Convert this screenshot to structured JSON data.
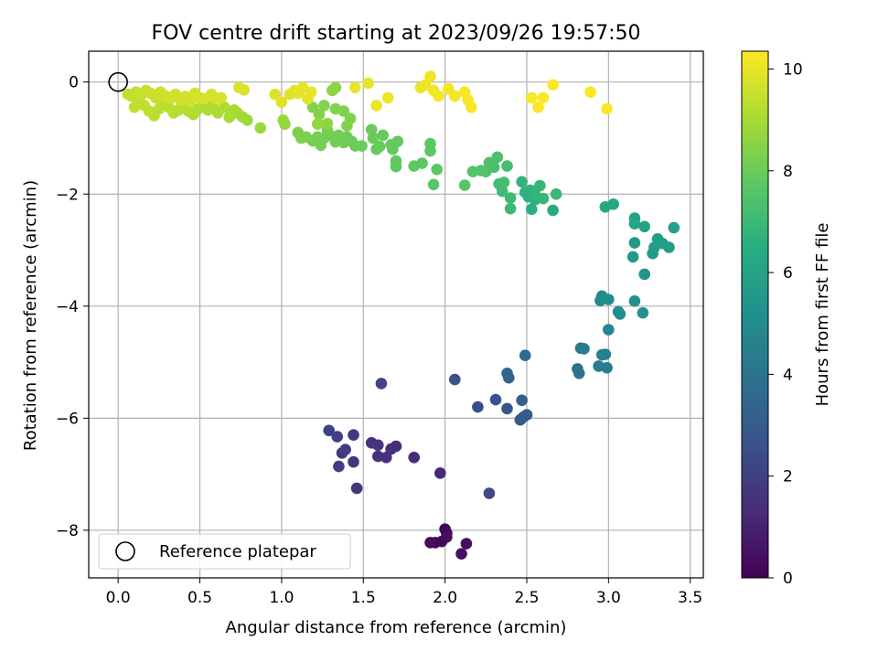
{
  "chart_data": {
    "type": "scatter",
    "title": "FOV centre drift starting at 2023/09/26 19:57:50",
    "xlabel": "Angular distance from reference (arcmin)",
    "ylabel": "Rotation from reference (arcmin)",
    "xlim": [
      -0.18,
      3.58
    ],
    "ylim": [
      -8.85,
      0.55
    ],
    "xticks": [
      0.0,
      0.5,
      1.0,
      1.5,
      2.0,
      2.5,
      3.0,
      3.5
    ],
    "yticks": [
      0,
      -2,
      -4,
      -6,
      -8
    ],
    "xtick_labels": [
      "0.0",
      "0.5",
      "1.0",
      "1.5",
      "2.0",
      "2.5",
      "3.0",
      "3.5"
    ],
    "ytick_labels": [
      "0",
      "−2",
      "−4",
      "−6",
      "−8"
    ],
    "grid": true,
    "legend": {
      "placement": "lower-left",
      "entries": [
        "Reference platepar"
      ]
    },
    "reference_point": {
      "x": 0.0,
      "y": 0.0,
      "marker": "open-circle",
      "color": "#000000"
    },
    "colorbar": {
      "label": "Hours from first FF file",
      "range": [
        0,
        10.35
      ],
      "ticks": [
        0,
        2,
        4,
        6,
        8,
        10
      ],
      "tick_labels": [
        "0",
        "2",
        "4",
        "6",
        "8",
        "10"
      ],
      "colormap": "viridis"
    },
    "points": [
      {
        "x": 2.01,
        "y": -8.05,
        "c": 0.1
      },
      {
        "x": 2.0,
        "y": -7.98,
        "c": 0.15
      },
      {
        "x": 1.94,
        "y": -8.22,
        "c": 0.2
      },
      {
        "x": 1.98,
        "y": -8.2,
        "c": 0.25
      },
      {
        "x": 1.91,
        "y": -8.22,
        "c": 0.3
      },
      {
        "x": 2.01,
        "y": -8.12,
        "c": 0.35
      },
      {
        "x": 2.13,
        "y": -8.24,
        "c": 0.4
      },
      {
        "x": 2.1,
        "y": -8.42,
        "c": 0.45
      },
      {
        "x": 1.97,
        "y": -6.98,
        "c": 1.2
      },
      {
        "x": 1.81,
        "y": -6.7,
        "c": 1.3
      },
      {
        "x": 1.7,
        "y": -6.5,
        "c": 1.35
      },
      {
        "x": 1.67,
        "y": -6.55,
        "c": 1.4
      },
      {
        "x": 1.64,
        "y": -6.7,
        "c": 1.45
      },
      {
        "x": 1.59,
        "y": -6.68,
        "c": 1.5
      },
      {
        "x": 1.55,
        "y": -6.44,
        "c": 1.55
      },
      {
        "x": 1.59,
        "y": -6.48,
        "c": 1.6
      },
      {
        "x": 1.46,
        "y": -7.25,
        "c": 1.65
      },
      {
        "x": 1.44,
        "y": -6.78,
        "c": 1.7
      },
      {
        "x": 1.44,
        "y": -6.3,
        "c": 1.75
      },
      {
        "x": 1.37,
        "y": -6.62,
        "c": 1.8
      },
      {
        "x": 1.39,
        "y": -6.56,
        "c": 1.85
      },
      {
        "x": 1.35,
        "y": -6.86,
        "c": 1.9
      },
      {
        "x": 1.34,
        "y": -6.33,
        "c": 1.95
      },
      {
        "x": 1.29,
        "y": -6.22,
        "c": 2.0
      },
      {
        "x": 1.61,
        "y": -5.38,
        "c": 2.1
      },
      {
        "x": 2.27,
        "y": -7.34,
        "c": 2.3
      },
      {
        "x": 2.2,
        "y": -5.8,
        "c": 2.5
      },
      {
        "x": 2.06,
        "y": -5.31,
        "c": 2.6
      },
      {
        "x": 2.31,
        "y": -5.67,
        "c": 2.7
      },
      {
        "x": 2.38,
        "y": -5.83,
        "c": 2.8
      },
      {
        "x": 2.46,
        "y": -6.03,
        "c": 2.9
      },
      {
        "x": 2.48,
        "y": -5.98,
        "c": 2.95
      },
      {
        "x": 2.5,
        "y": -5.94,
        "c": 3.0
      },
      {
        "x": 2.47,
        "y": -5.68,
        "c": 3.1
      },
      {
        "x": 2.38,
        "y": -5.2,
        "c": 3.3
      },
      {
        "x": 2.39,
        "y": -5.28,
        "c": 3.4
      },
      {
        "x": 2.49,
        "y": -4.88,
        "c": 3.6
      },
      {
        "x": 2.81,
        "y": -5.12,
        "c": 3.9
      },
      {
        "x": 2.82,
        "y": -5.2,
        "c": 4.0
      },
      {
        "x": 2.83,
        "y": -4.75,
        "c": 4.2
      },
      {
        "x": 2.85,
        "y": -4.76,
        "c": 4.3
      },
      {
        "x": 2.94,
        "y": -5.07,
        "c": 4.35
      },
      {
        "x": 2.99,
        "y": -5.1,
        "c": 4.4
      },
      {
        "x": 2.96,
        "y": -4.87,
        "c": 4.45
      },
      {
        "x": 2.98,
        "y": -4.86,
        "c": 4.5
      },
      {
        "x": 3.0,
        "y": -4.42,
        "c": 4.7
      },
      {
        "x": 2.95,
        "y": -3.9,
        "c": 4.9
      },
      {
        "x": 2.96,
        "y": -3.82,
        "c": 5.0
      },
      {
        "x": 3.0,
        "y": -3.88,
        "c": 5.05
      },
      {
        "x": 3.06,
        "y": -4.1,
        "c": 5.1
      },
      {
        "x": 3.07,
        "y": -4.14,
        "c": 5.15
      },
      {
        "x": 3.16,
        "y": -3.91,
        "c": 5.2
      },
      {
        "x": 3.21,
        "y": -4.12,
        "c": 5.3
      },
      {
        "x": 3.22,
        "y": -3.43,
        "c": 5.4
      },
      {
        "x": 3.15,
        "y": -3.12,
        "c": 5.5
      },
      {
        "x": 3.16,
        "y": -2.87,
        "c": 5.6
      },
      {
        "x": 3.27,
        "y": -3.06,
        "c": 5.65
      },
      {
        "x": 3.28,
        "y": -2.95,
        "c": 5.7
      },
      {
        "x": 3.3,
        "y": -2.8,
        "c": 5.75
      },
      {
        "x": 3.33,
        "y": -2.88,
        "c": 5.8
      },
      {
        "x": 3.37,
        "y": -2.95,
        "c": 5.85
      },
      {
        "x": 3.4,
        "y": -2.6,
        "c": 5.9
      },
      {
        "x": 3.22,
        "y": -2.58,
        "c": 6.0
      },
      {
        "x": 3.16,
        "y": -2.43,
        "c": 6.05
      },
      {
        "x": 3.16,
        "y": -2.53,
        "c": 6.1
      },
      {
        "x": 3.03,
        "y": -2.18,
        "c": 6.2
      },
      {
        "x": 2.98,
        "y": -2.23,
        "c": 6.25
      },
      {
        "x": 2.66,
        "y": -2.29,
        "c": 6.4
      },
      {
        "x": 2.53,
        "y": -2.27,
        "c": 6.5
      },
      {
        "x": 2.55,
        "y": -2.1,
        "c": 6.55
      },
      {
        "x": 2.51,
        "y": -2.05,
        "c": 6.6
      },
      {
        "x": 2.49,
        "y": -1.97,
        "c": 6.65
      },
      {
        "x": 2.52,
        "y": -1.93,
        "c": 6.7
      },
      {
        "x": 2.47,
        "y": -1.78,
        "c": 6.75
      },
      {
        "x": 2.55,
        "y": -2.0,
        "c": 6.8
      },
      {
        "x": 2.58,
        "y": -1.85,
        "c": 6.85
      },
      {
        "x": 2.6,
        "y": -2.08,
        "c": 6.9
      },
      {
        "x": 2.68,
        "y": -2.0,
        "c": 6.95
      },
      {
        "x": 2.4,
        "y": -2.26,
        "c": 7.0
      },
      {
        "x": 2.4,
        "y": -2.07,
        "c": 7.05
      },
      {
        "x": 2.35,
        "y": -1.95,
        "c": 7.1
      },
      {
        "x": 2.33,
        "y": -1.82,
        "c": 7.15
      },
      {
        "x": 2.36,
        "y": -1.79,
        "c": 7.2
      },
      {
        "x": 2.38,
        "y": -1.5,
        "c": 7.25
      },
      {
        "x": 2.3,
        "y": -1.52,
        "c": 7.3
      },
      {
        "x": 2.32,
        "y": -1.34,
        "c": 7.35
      },
      {
        "x": 2.27,
        "y": -1.44,
        "c": 7.4
      },
      {
        "x": 2.25,
        "y": -1.6,
        "c": 7.45
      },
      {
        "x": 2.22,
        "y": -1.58,
        "c": 7.5
      },
      {
        "x": 2.17,
        "y": -1.6,
        "c": 7.55
      },
      {
        "x": 2.12,
        "y": -1.84,
        "c": 7.6
      },
      {
        "x": 1.93,
        "y": -1.83,
        "c": 7.65
      },
      {
        "x": 1.95,
        "y": -1.56,
        "c": 7.7
      },
      {
        "x": 1.91,
        "y": -1.23,
        "c": 7.72
      },
      {
        "x": 1.91,
        "y": -1.1,
        "c": 7.74
      },
      {
        "x": 1.86,
        "y": -1.45,
        "c": 7.76
      },
      {
        "x": 1.81,
        "y": -1.5,
        "c": 7.78
      },
      {
        "x": 1.7,
        "y": -1.51,
        "c": 7.8
      },
      {
        "x": 1.7,
        "y": -1.41,
        "c": 7.82
      },
      {
        "x": 1.68,
        "y": -1.2,
        "c": 7.84
      },
      {
        "x": 1.71,
        "y": -1.06,
        "c": 7.86
      },
      {
        "x": 1.67,
        "y": -1.12,
        "c": 7.88
      },
      {
        "x": 1.62,
        "y": -0.95,
        "c": 7.9
      },
      {
        "x": 1.6,
        "y": -1.15,
        "c": 7.92
      },
      {
        "x": 1.58,
        "y": -1.2,
        "c": 7.94
      },
      {
        "x": 1.56,
        "y": -1.0,
        "c": 7.96
      },
      {
        "x": 1.55,
        "y": -0.85,
        "c": 7.98
      },
      {
        "x": 1.49,
        "y": -1.14,
        "c": 8.0
      },
      {
        "x": 1.45,
        "y": -1.14,
        "c": 8.02
      },
      {
        "x": 1.43,
        "y": -1.06,
        "c": 8.04
      },
      {
        "x": 1.4,
        "y": -0.98,
        "c": 8.06
      },
      {
        "x": 1.38,
        "y": -1.08,
        "c": 8.08
      },
      {
        "x": 1.35,
        "y": -0.95,
        "c": 8.1
      },
      {
        "x": 1.33,
        "y": -1.07,
        "c": 8.12
      },
      {
        "x": 1.31,
        "y": -0.97,
        "c": 8.14
      },
      {
        "x": 1.28,
        "y": -0.86,
        "c": 8.16
      },
      {
        "x": 1.26,
        "y": -1.0,
        "c": 8.18
      },
      {
        "x": 1.24,
        "y": -1.13,
        "c": 8.2
      },
      {
        "x": 1.22,
        "y": -0.98,
        "c": 8.22
      },
      {
        "x": 1.19,
        "y": -1.05,
        "c": 8.24
      },
      {
        "x": 1.15,
        "y": -0.98,
        "c": 8.26
      },
      {
        "x": 1.12,
        "y": -1.0,
        "c": 8.28
      },
      {
        "x": 1.1,
        "y": -0.9,
        "c": 8.3
      },
      {
        "x": 1.4,
        "y": -0.78,
        "c": 8.32
      },
      {
        "x": 1.42,
        "y": -0.65,
        "c": 8.34
      },
      {
        "x": 1.38,
        "y": -0.52,
        "c": 8.36
      },
      {
        "x": 1.33,
        "y": -0.48,
        "c": 8.38
      },
      {
        "x": 1.26,
        "y": -0.42,
        "c": 8.4
      },
      {
        "x": 1.23,
        "y": -0.58,
        "c": 8.42
      },
      {
        "x": 1.19,
        "y": -0.45,
        "c": 8.44
      },
      {
        "x": 1.33,
        "y": -0.1,
        "c": 8.5
      },
      {
        "x": 1.31,
        "y": -0.15,
        "c": 8.55
      },
      {
        "x": 1.28,
        "y": -0.74,
        "c": 8.6
      },
      {
        "x": 1.22,
        "y": -0.75,
        "c": 8.65
      },
      {
        "x": 1.02,
        "y": -0.75,
        "c": 8.7
      },
      {
        "x": 1.01,
        "y": -0.68,
        "c": 8.75
      },
      {
        "x": 0.87,
        "y": -0.82,
        "c": 8.8
      },
      {
        "x": 0.79,
        "y": -0.68,
        "c": 8.85
      },
      {
        "x": 0.76,
        "y": -0.62,
        "c": 8.9
      },
      {
        "x": 0.73,
        "y": -0.55,
        "c": 8.95
      },
      {
        "x": 0.71,
        "y": -0.5,
        "c": 9.0
      },
      {
        "x": 0.68,
        "y": -0.63,
        "c": 9.02
      },
      {
        "x": 0.65,
        "y": -0.45,
        "c": 9.04
      },
      {
        "x": 0.61,
        "y": -0.55,
        "c": 9.06
      },
      {
        "x": 0.58,
        "y": -0.42,
        "c": 9.08
      },
      {
        "x": 0.55,
        "y": -0.5,
        "c": 9.1
      },
      {
        "x": 0.52,
        "y": -0.38,
        "c": 9.12
      },
      {
        "x": 0.49,
        "y": -0.48,
        "c": 9.14
      },
      {
        "x": 0.46,
        "y": -0.58,
        "c": 9.16
      },
      {
        "x": 0.43,
        "y": -0.52,
        "c": 9.18
      },
      {
        "x": 0.4,
        "y": -0.4,
        "c": 9.2
      },
      {
        "x": 0.37,
        "y": -0.5,
        "c": 9.22
      },
      {
        "x": 0.34,
        "y": -0.55,
        "c": 9.24
      },
      {
        "x": 0.31,
        "y": -0.45,
        "c": 9.26
      },
      {
        "x": 0.28,
        "y": -0.38,
        "c": 9.28
      },
      {
        "x": 0.25,
        "y": -0.48,
        "c": 9.3
      },
      {
        "x": 0.22,
        "y": -0.6,
        "c": 9.32
      },
      {
        "x": 0.19,
        "y": -0.52,
        "c": 9.34
      },
      {
        "x": 0.16,
        "y": -0.42,
        "c": 9.36
      },
      {
        "x": 0.13,
        "y": -0.35,
        "c": 9.38
      },
      {
        "x": 0.1,
        "y": -0.45,
        "c": 9.4
      },
      {
        "x": 0.06,
        "y": -0.22,
        "c": 9.42
      },
      {
        "x": 0.08,
        "y": -0.25,
        "c": 9.44
      },
      {
        "x": 0.11,
        "y": -0.18,
        "c": 9.46
      },
      {
        "x": 0.14,
        "y": -0.24,
        "c": 9.48
      },
      {
        "x": 0.17,
        "y": -0.15,
        "c": 9.5
      },
      {
        "x": 0.2,
        "y": -0.2,
        "c": 9.52
      },
      {
        "x": 0.23,
        "y": -0.28,
        "c": 9.54
      },
      {
        "x": 0.26,
        "y": -0.18,
        "c": 9.56
      },
      {
        "x": 0.29,
        "y": -0.25,
        "c": 9.58
      },
      {
        "x": 0.32,
        "y": -0.3,
        "c": 9.6
      },
      {
        "x": 0.35,
        "y": -0.22,
        "c": 9.62
      },
      {
        "x": 0.38,
        "y": -0.32,
        "c": 9.64
      },
      {
        "x": 0.41,
        "y": -0.26,
        "c": 9.66
      },
      {
        "x": 0.44,
        "y": -0.35,
        "c": 9.68
      },
      {
        "x": 0.47,
        "y": -0.2,
        "c": 9.7
      },
      {
        "x": 0.5,
        "y": -0.28,
        "c": 9.72
      },
      {
        "x": 0.53,
        "y": -0.3,
        "c": 9.74
      },
      {
        "x": 0.57,
        "y": -0.22,
        "c": 9.76
      },
      {
        "x": 0.6,
        "y": -0.3,
        "c": 9.78
      },
      {
        "x": 0.63,
        "y": -0.28,
        "c": 9.8
      },
      {
        "x": 0.74,
        "y": -0.1,
        "c": 9.82
      },
      {
        "x": 0.77,
        "y": -0.14,
        "c": 9.84
      },
      {
        "x": 0.96,
        "y": -0.22,
        "c": 9.86
      },
      {
        "x": 1.0,
        "y": -0.36,
        "c": 9.88
      },
      {
        "x": 1.05,
        "y": -0.22,
        "c": 9.9
      },
      {
        "x": 1.08,
        "y": -0.15,
        "c": 9.92
      },
      {
        "x": 1.1,
        "y": -0.2,
        "c": 9.94
      },
      {
        "x": 1.13,
        "y": -0.1,
        "c": 9.96
      },
      {
        "x": 1.16,
        "y": -0.3,
        "c": 9.98
      },
      {
        "x": 1.18,
        "y": -0.18,
        "c": 10.0
      },
      {
        "x": 1.45,
        "y": -0.1,
        "c": 10.02
      },
      {
        "x": 1.53,
        "y": -0.02,
        "c": 10.04
      },
      {
        "x": 1.58,
        "y": -0.42,
        "c": 10.06
      },
      {
        "x": 1.65,
        "y": -0.28,
        "c": 10.08
      },
      {
        "x": 1.85,
        "y": -0.1,
        "c": 10.1
      },
      {
        "x": 1.88,
        "y": -0.05,
        "c": 10.12
      },
      {
        "x": 1.91,
        "y": 0.1,
        "c": 10.14
      },
      {
        "x": 1.93,
        "y": -0.15,
        "c": 10.16
      },
      {
        "x": 1.96,
        "y": -0.25,
        "c": 10.18
      },
      {
        "x": 2.02,
        "y": -0.12,
        "c": 10.2
      },
      {
        "x": 2.06,
        "y": -0.25,
        "c": 10.22
      },
      {
        "x": 2.12,
        "y": -0.18,
        "c": 10.24
      },
      {
        "x": 2.14,
        "y": -0.32,
        "c": 10.26
      },
      {
        "x": 2.16,
        "y": -0.45,
        "c": 10.28
      },
      {
        "x": 2.53,
        "y": -0.28,
        "c": 10.3
      },
      {
        "x": 2.57,
        "y": -0.45,
        "c": 10.31
      },
      {
        "x": 2.6,
        "y": -0.28,
        "c": 10.32
      },
      {
        "x": 2.66,
        "y": -0.05,
        "c": 10.33
      },
      {
        "x": 2.89,
        "y": -0.18,
        "c": 10.34
      },
      {
        "x": 2.99,
        "y": -0.48,
        "c": 10.35
      }
    ]
  }
}
